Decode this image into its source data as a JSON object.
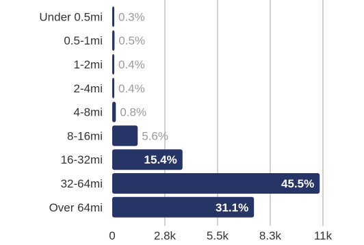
{
  "chart_data": {
    "type": "bar",
    "orientation": "horizontal",
    "title": "",
    "xlabel": "",
    "ylabel": "",
    "categories": [
      "Under 0.5mi",
      "0.5-1mi",
      "1-2mi",
      "2-4mi",
      "4-8mi",
      "8-16mi",
      "16-32mi",
      "32-64mi",
      "Over 64mi"
    ],
    "values": [
      70,
      120,
      95,
      95,
      190,
      1330,
      3670,
      10830,
      7400
    ],
    "data_labels": [
      "0.3%",
      "0.5%",
      "0.4%",
      "0.4%",
      "0.8%",
      "5.6%",
      "15.4%",
      "45.5%",
      "31.1%"
    ],
    "x_ticks": [
      0,
      2750,
      5500,
      8250,
      11000
    ],
    "x_tick_labels": [
      "0",
      "2.8k",
      "5.5k",
      "8.3k",
      "11k"
    ],
    "xlim": [
      0,
      13000
    ],
    "grid": true,
    "legend": "none",
    "colors": {
      "bar": "#273566",
      "grid": "#bdbdbd",
      "label_inside": "#ffffff",
      "label_outside": "#9a9a9a",
      "text": "#333333"
    }
  }
}
